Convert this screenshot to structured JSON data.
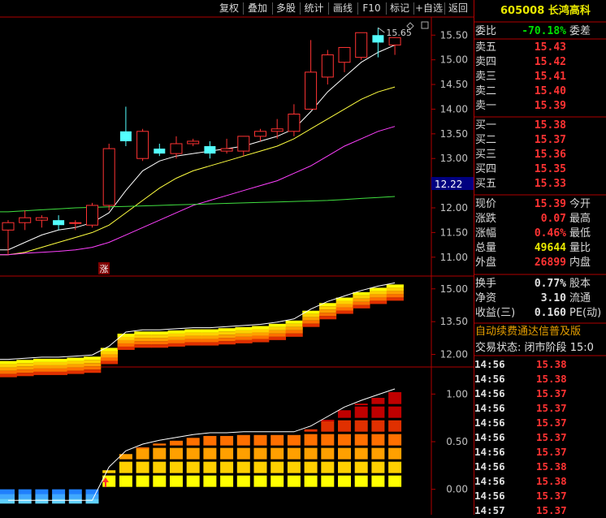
{
  "toolbar": {
    "items": [
      "复权",
      "叠加",
      "多股",
      "统计",
      "画线",
      "F10",
      "标记",
      "+自选",
      "返回"
    ]
  },
  "stock": {
    "code": "605008",
    "name": "长鸿高科"
  },
  "order_ratio": {
    "label": "委比",
    "value": "-70.18%",
    "label2": "委差"
  },
  "asks": [
    {
      "label": "卖五",
      "price": "15.43"
    },
    {
      "label": "卖四",
      "price": "15.42"
    },
    {
      "label": "卖三",
      "price": "15.41"
    },
    {
      "label": "卖二",
      "price": "15.40"
    },
    {
      "label": "卖一",
      "price": "15.39"
    }
  ],
  "bids": [
    {
      "label": "买一",
      "price": "15.38"
    },
    {
      "label": "买二",
      "price": "15.37"
    },
    {
      "label": "买三",
      "price": "15.36"
    },
    {
      "label": "买四",
      "price": "15.35"
    },
    {
      "label": "买五",
      "price": "15.33"
    }
  ],
  "quote": [
    {
      "label": "现价",
      "value": "15.39",
      "label2": "今开",
      "color": "#ff3333"
    },
    {
      "label": "涨跌",
      "value": "0.07",
      "label2": "最高",
      "color": "#ff3333"
    },
    {
      "label": "涨幅",
      "value": "0.46%",
      "label2": "最低",
      "color": "#ff3333"
    },
    {
      "label": "总量",
      "value": "49644",
      "label2": "量比",
      "color": "#e8e800"
    },
    {
      "label": "外盘",
      "value": "26899",
      "label2": "内盘",
      "color": "#ff3333"
    }
  ],
  "stats": [
    {
      "label": "换手",
      "value": "0.77%",
      "label2": "股本"
    },
    {
      "label": "净资",
      "value": "3.10",
      "label2": "流通"
    },
    {
      "label": "收益(三)",
      "value": "0.160",
      "label2": "PE(动)"
    }
  ],
  "ad_text": "自动续费通达信普及版",
  "trade_status": {
    "label": "交易状态:",
    "value": "闭市阶段",
    "time": "15:0"
  },
  "ticks": [
    {
      "time": "14:56",
      "price": "15.38"
    },
    {
      "time": "14:56",
      "price": "15.38"
    },
    {
      "time": "14:56",
      "price": "15.37"
    },
    {
      "time": "14:56",
      "price": "15.37"
    },
    {
      "time": "14:56",
      "price": "15.37"
    },
    {
      "time": "14:56",
      "price": "15.37"
    },
    {
      "time": "14:56",
      "price": "15.37"
    },
    {
      "time": "14:56",
      "price": "15.38"
    },
    {
      "time": "14:56",
      "price": "15.38"
    },
    {
      "time": "14:56",
      "price": "15.37"
    },
    {
      "time": "14:57",
      "price": "15.37"
    }
  ],
  "chart_data": [
    {
      "type": "candlestick",
      "y_ticks": [
        "15.50",
        "15.00",
        "14.50",
        "14.00",
        "13.50",
        "13.00",
        "12.50",
        "12.00",
        "11.50",
        "11.00"
      ],
      "ylim": [
        10.7,
        15.85
      ],
      "current_price_tag": "12.22",
      "max_label": "15.65",
      "marker_label": "涨",
      "candles": [
        {
          "o": 11.55,
          "h": 11.75,
          "l": 11.05,
          "c": 11.7
        },
        {
          "o": 11.7,
          "h": 11.95,
          "l": 11.55,
          "c": 11.8
        },
        {
          "o": 11.75,
          "h": 11.85,
          "l": 11.6,
          "c": 11.8
        },
        {
          "o": 11.75,
          "h": 11.85,
          "l": 11.55,
          "c": 11.65
        },
        {
          "o": 11.7,
          "h": 11.75,
          "l": 11.55,
          "c": 11.7
        },
        {
          "o": 11.65,
          "h": 12.1,
          "l": 11.6,
          "c": 12.05
        },
        {
          "o": 12.05,
          "h": 13.3,
          "l": 11.95,
          "c": 13.2
        },
        {
          "o": 13.55,
          "h": 14.05,
          "l": 13.25,
          "c": 13.35
        },
        {
          "o": 13.0,
          "h": 13.6,
          "l": 12.95,
          "c": 13.55
        },
        {
          "o": 13.2,
          "h": 13.3,
          "l": 13.05,
          "c": 13.1
        },
        {
          "o": 13.1,
          "h": 13.45,
          "l": 13.0,
          "c": 13.3
        },
        {
          "o": 13.3,
          "h": 13.4,
          "l": 13.25,
          "c": 13.35
        },
        {
          "o": 13.25,
          "h": 13.35,
          "l": 13.0,
          "c": 13.1
        },
        {
          "o": 13.15,
          "h": 13.4,
          "l": 13.1,
          "c": 13.2
        },
        {
          "o": 13.15,
          "h": 13.45,
          "l": 13.05,
          "c": 13.45
        },
        {
          "o": 13.45,
          "h": 13.6,
          "l": 13.35,
          "c": 13.55
        },
        {
          "o": 13.55,
          "h": 13.8,
          "l": 13.4,
          "c": 13.6
        },
        {
          "o": 13.55,
          "h": 14.1,
          "l": 13.45,
          "c": 13.9
        },
        {
          "o": 14.0,
          "h": 15.4,
          "l": 14.0,
          "c": 14.75
        },
        {
          "o": 14.65,
          "h": 15.2,
          "l": 14.5,
          "c": 15.1
        },
        {
          "o": 14.95,
          "h": 15.25,
          "l": 14.75,
          "c": 15.25
        },
        {
          "o": 15.05,
          "h": 15.55,
          "l": 15.0,
          "c": 15.55
        },
        {
          "o": 15.5,
          "h": 15.65,
          "l": 15.05,
          "c": 15.35
        },
        {
          "o": 15.3,
          "h": 15.45,
          "l": 15.1,
          "c": 15.45
        }
      ],
      "ma_lines": [
        {
          "name": "",
          "color": "#ffffff",
          "values": [
            11.15,
            11.3,
            11.45,
            11.55,
            11.6,
            11.7,
            11.9,
            12.35,
            12.75,
            12.95,
            13.05,
            13.1,
            13.15,
            13.2,
            13.25,
            13.35,
            13.45,
            13.6,
            13.95,
            14.35,
            14.65,
            14.95,
            15.15,
            15.3
          ]
        },
        {
          "name": "",
          "color": "#ffff40",
          "values": [
            11.05,
            11.1,
            11.2,
            11.3,
            11.4,
            11.5,
            11.65,
            11.9,
            12.15,
            12.4,
            12.6,
            12.75,
            12.85,
            12.95,
            13.05,
            13.15,
            13.25,
            13.4,
            13.6,
            13.8,
            14.0,
            14.2,
            14.35,
            14.45
          ]
        },
        {
          "name": "",
          "color": "#ff40ff",
          "values": [
            11.05,
            11.08,
            11.1,
            11.12,
            11.15,
            11.2,
            11.3,
            11.45,
            11.6,
            11.75,
            11.9,
            12.05,
            12.15,
            12.25,
            12.35,
            12.45,
            12.55,
            12.7,
            12.85,
            13.05,
            13.25,
            13.4,
            13.55,
            13.65
          ]
        },
        {
          "name": "",
          "color": "#40e040",
          "values": [
            11.92,
            11.94,
            11.96,
            11.98,
            12.0,
            12.01,
            12.02,
            12.03,
            12.04,
            12.05,
            12.06,
            12.07,
            12.08,
            12.09,
            12.1,
            12.11,
            12.12,
            12.13,
            12.14,
            12.15,
            12.17,
            12.19,
            12.21,
            12.23
          ]
        }
      ]
    },
    {
      "type": "area",
      "y_ticks": [
        "15.00",
        "13.50",
        "12.00"
      ],
      "ylim": [
        11.5,
        15.4
      ],
      "values": [
        11.7,
        11.75,
        11.8,
        11.8,
        11.85,
        11.9,
        12.3,
        12.95,
        13.05,
        13.05,
        13.1,
        13.15,
        13.15,
        13.2,
        13.25,
        13.3,
        13.4,
        13.55,
        14.0,
        14.35,
        14.6,
        14.85,
        15.05,
        15.2
      ]
    },
    {
      "type": "bar",
      "y_ticks": [
        "1.00",
        "0.50",
        "0.00"
      ],
      "ylim": [
        -0.25,
        1.25
      ],
      "values": [
        -0.15,
        -0.15,
        -0.15,
        -0.15,
        -0.15,
        -0.15,
        0.2,
        0.37,
        0.44,
        0.48,
        0.51,
        0.54,
        0.56,
        0.56,
        0.57,
        0.57,
        0.57,
        0.57,
        0.63,
        0.73,
        0.83,
        0.9,
        0.96,
        1.02
      ]
    }
  ]
}
